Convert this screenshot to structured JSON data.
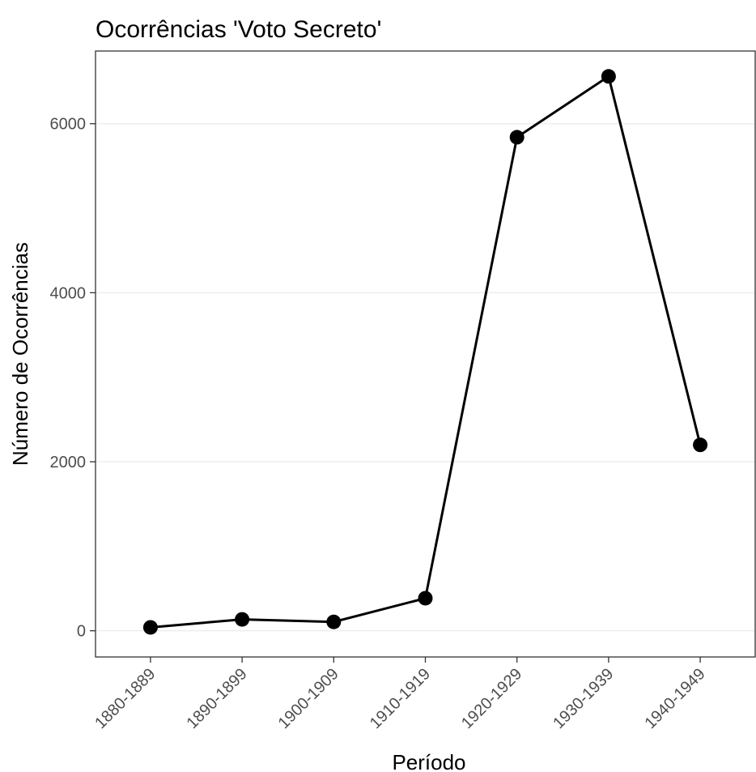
{
  "chart_data": {
    "type": "line",
    "title": "Ocorrências 'Voto Secreto'",
    "xlabel": "Período",
    "ylabel": "Número de Ocorrências",
    "categories": [
      "1880-1889",
      "1890-1899",
      "1900-1909",
      "1910-1919",
      "1920-1929",
      "1930-1939",
      "1940-1949"
    ],
    "values": [
      40,
      135,
      105,
      385,
      5840,
      6560,
      2200
    ],
    "ylim": [
      -310,
      6860
    ],
    "yticks": [
      0,
      2000,
      4000,
      6000
    ],
    "ytick_labels": [
      "0",
      "2000",
      "4000",
      "6000"
    ],
    "grid": "horizontal",
    "legend": "none",
    "line_color": "#000000",
    "marker": "filled-circle"
  }
}
